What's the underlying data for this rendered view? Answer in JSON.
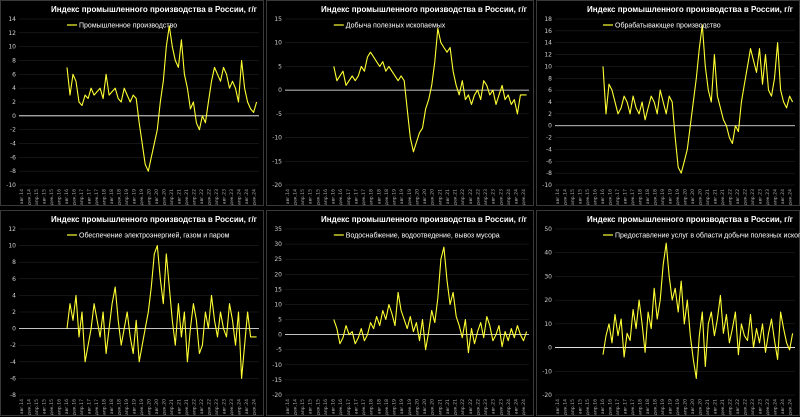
{
  "colors": {
    "background": "#000000",
    "line": "#ffff33",
    "zero_line": "#ffffff",
    "grid": "#2a2a2a"
  },
  "x_tick_labels": [
    "авг.14",
    "дек.14",
    "апр.15",
    "авг.15",
    "дек.15",
    "апр.16",
    "авг.16",
    "дек.16",
    "апр.17",
    "авг.17",
    "дек.17",
    "апр.18",
    "авг.18",
    "дек.18",
    "апр.19",
    "авг.19",
    "дек.19",
    "апр.20",
    "авг.20",
    "дек.20",
    "апр.21",
    "авг.21",
    "дек.21",
    "апр.22",
    "авг.22",
    "дек.22",
    "апр.23",
    "авг.23",
    "дек.23",
    "апр.24",
    "авг.24",
    "дек.24"
  ],
  "chart_data": [
    {
      "type": "line",
      "title": "Индекс промышленного производства в России, г/г",
      "series": [
        {
          "name": "Промышленное производство",
          "values": [
            7,
            3,
            6,
            5,
            2,
            1.5,
            3,
            2.5,
            4,
            3,
            3.5,
            4,
            2.5,
            6,
            3,
            3.5,
            4,
            2.5,
            2,
            4,
            3,
            2,
            3,
            2.5,
            -1,
            -4,
            -7,
            -8,
            -6,
            -4,
            -2,
            2,
            5,
            10,
            13,
            10,
            8,
            7,
            11,
            6,
            4,
            1,
            2,
            -1,
            -2,
            0,
            -1,
            2,
            5,
            7,
            6,
            5,
            7,
            6,
            4,
            5,
            4,
            2,
            8,
            4,
            2,
            1,
            0.5,
            2
          ]
        }
      ],
      "ylim": [
        -10,
        14
      ],
      "yticks": [
        -10,
        -8,
        -6,
        -4,
        -2,
        0,
        2,
        4,
        6,
        8,
        10,
        12,
        14
      ],
      "grid": true,
      "legend": "top-left"
    },
    {
      "type": "line",
      "title": "Индекс промышленного производства в России, г/г",
      "series": [
        {
          "name": "Добыча полезных ископаемых",
          "values": [
            5,
            2,
            3,
            4,
            1,
            2,
            3,
            2,
            3,
            5,
            4,
            7,
            8,
            7,
            6,
            5,
            6,
            4,
            5,
            4,
            3,
            2,
            3,
            2,
            -4,
            -10,
            -13,
            -11,
            -9,
            -8,
            -4,
            -2,
            1,
            6,
            13,
            10,
            9,
            8,
            9,
            4,
            1,
            -1,
            2,
            -2,
            -1,
            -3,
            -1,
            0,
            -2,
            2,
            1,
            -1,
            0,
            -3,
            -1,
            1,
            -2,
            -1,
            -3,
            -2,
            -5,
            -1,
            -1,
            -1
          ]
        }
      ],
      "ylim": [
        -20,
        15
      ],
      "yticks": [
        -20,
        -15,
        -10,
        -5,
        0,
        5,
        10,
        15
      ],
      "grid": true,
      "legend": "top-left"
    },
    {
      "type": "line",
      "title": "Индекс промышленного производства в России, г/г",
      "series": [
        {
          "name": "Обрабатывающее производство",
          "values": [
            10,
            2,
            7,
            6,
            4,
            2,
            3,
            5,
            4,
            2,
            5,
            3,
            2,
            4,
            1,
            3,
            5,
            4,
            2,
            6,
            4,
            2,
            5,
            4,
            -2,
            -7,
            -8,
            -6,
            -4,
            0,
            4,
            8,
            13,
            17,
            10,
            6,
            4,
            12,
            5,
            3,
            1,
            0,
            -2,
            -3,
            0,
            -1,
            4,
            7,
            10,
            13,
            11,
            9,
            13,
            7,
            12,
            6,
            5,
            8,
            14,
            6,
            4,
            3,
            5,
            4
          ]
        }
      ],
      "ylim": [
        -10,
        18
      ],
      "yticks": [
        -10,
        -8,
        -6,
        -4,
        -2,
        0,
        2,
        4,
        6,
        8,
        10,
        12,
        14,
        16,
        18
      ],
      "grid": true,
      "legend": "top-left"
    },
    {
      "type": "line",
      "title": "Индекс промышленного производства в России, г/г",
      "series": [
        {
          "name": "Обеспечение электроэнергией, газом и паром",
          "values": [
            0,
            3,
            1,
            4,
            -1,
            2,
            -4,
            -2,
            0,
            3,
            1,
            -1,
            2,
            -3,
            0,
            3,
            5,
            1,
            -2,
            0,
            2,
            -1,
            -3,
            1,
            -4,
            -2,
            0,
            2,
            5,
            9,
            10,
            6,
            3,
            9,
            5,
            1,
            -2,
            3,
            -1,
            2,
            -4,
            0,
            3,
            1,
            -3,
            -2,
            2,
            0,
            4,
            1,
            -1,
            2,
            0,
            -1,
            3,
            1,
            -2,
            2,
            -6,
            -2,
            2,
            -1,
            -1,
            -1
          ]
        }
      ],
      "ylim": [
        -8,
        12
      ],
      "yticks": [
        -8,
        -6,
        -4,
        -2,
        0,
        2,
        4,
        6,
        8,
        10,
        12
      ],
      "grid": true,
      "legend": "top-left"
    },
    {
      "type": "line",
      "title": "Индекс промышленного производства в России, г/г",
      "series": [
        {
          "name": "Водоснабжение, водоотведение, вывоз мусора",
          "values": [
            5,
            2,
            -3,
            -1,
            3,
            0,
            1,
            -3,
            -1,
            2,
            -2,
            0,
            4,
            2,
            6,
            3,
            8,
            5,
            10,
            7,
            3,
            14,
            8,
            5,
            2,
            6,
            1,
            4,
            -2,
            5,
            -5,
            1,
            8,
            4,
            12,
            25,
            29,
            18,
            10,
            14,
            6,
            3,
            -1,
            5,
            -6,
            2,
            -3,
            1,
            4,
            -1,
            6,
            3,
            -2,
            0,
            3,
            -4,
            1,
            -2,
            2,
            -1,
            3,
            0,
            -2,
            1
          ]
        }
      ],
      "ylim": [
        -20,
        35
      ],
      "yticks": [
        -20,
        -15,
        -10,
        -5,
        0,
        5,
        10,
        15,
        20,
        25,
        30,
        35
      ],
      "grid": true,
      "legend": "top-left"
    },
    {
      "type": "line",
      "title": "Индекс промышленного производства в России, г/г",
      "series": [
        {
          "name": "Предоставление услуг в области добычи полезных ископаемых",
          "values": [
            -3,
            5,
            10,
            2,
            14,
            5,
            12,
            -4,
            6,
            3,
            16,
            8,
            20,
            10,
            -2,
            15,
            8,
            25,
            12,
            20,
            35,
            44,
            30,
            20,
            25,
            15,
            28,
            10,
            20,
            5,
            -5,
            -13,
            5,
            15,
            -8,
            10,
            15,
            5,
            12,
            22,
            6,
            14,
            2,
            8,
            15,
            -3,
            10,
            5,
            3,
            14,
            0,
            8,
            2,
            10,
            -2,
            6,
            12,
            3,
            -5,
            15,
            8,
            2,
            -1,
            6
          ]
        }
      ],
      "ylim": [
        -20,
        50
      ],
      "yticks": [
        -20,
        -10,
        0,
        10,
        20,
        30,
        40,
        50
      ],
      "grid": true,
      "legend": "top-left"
    }
  ]
}
